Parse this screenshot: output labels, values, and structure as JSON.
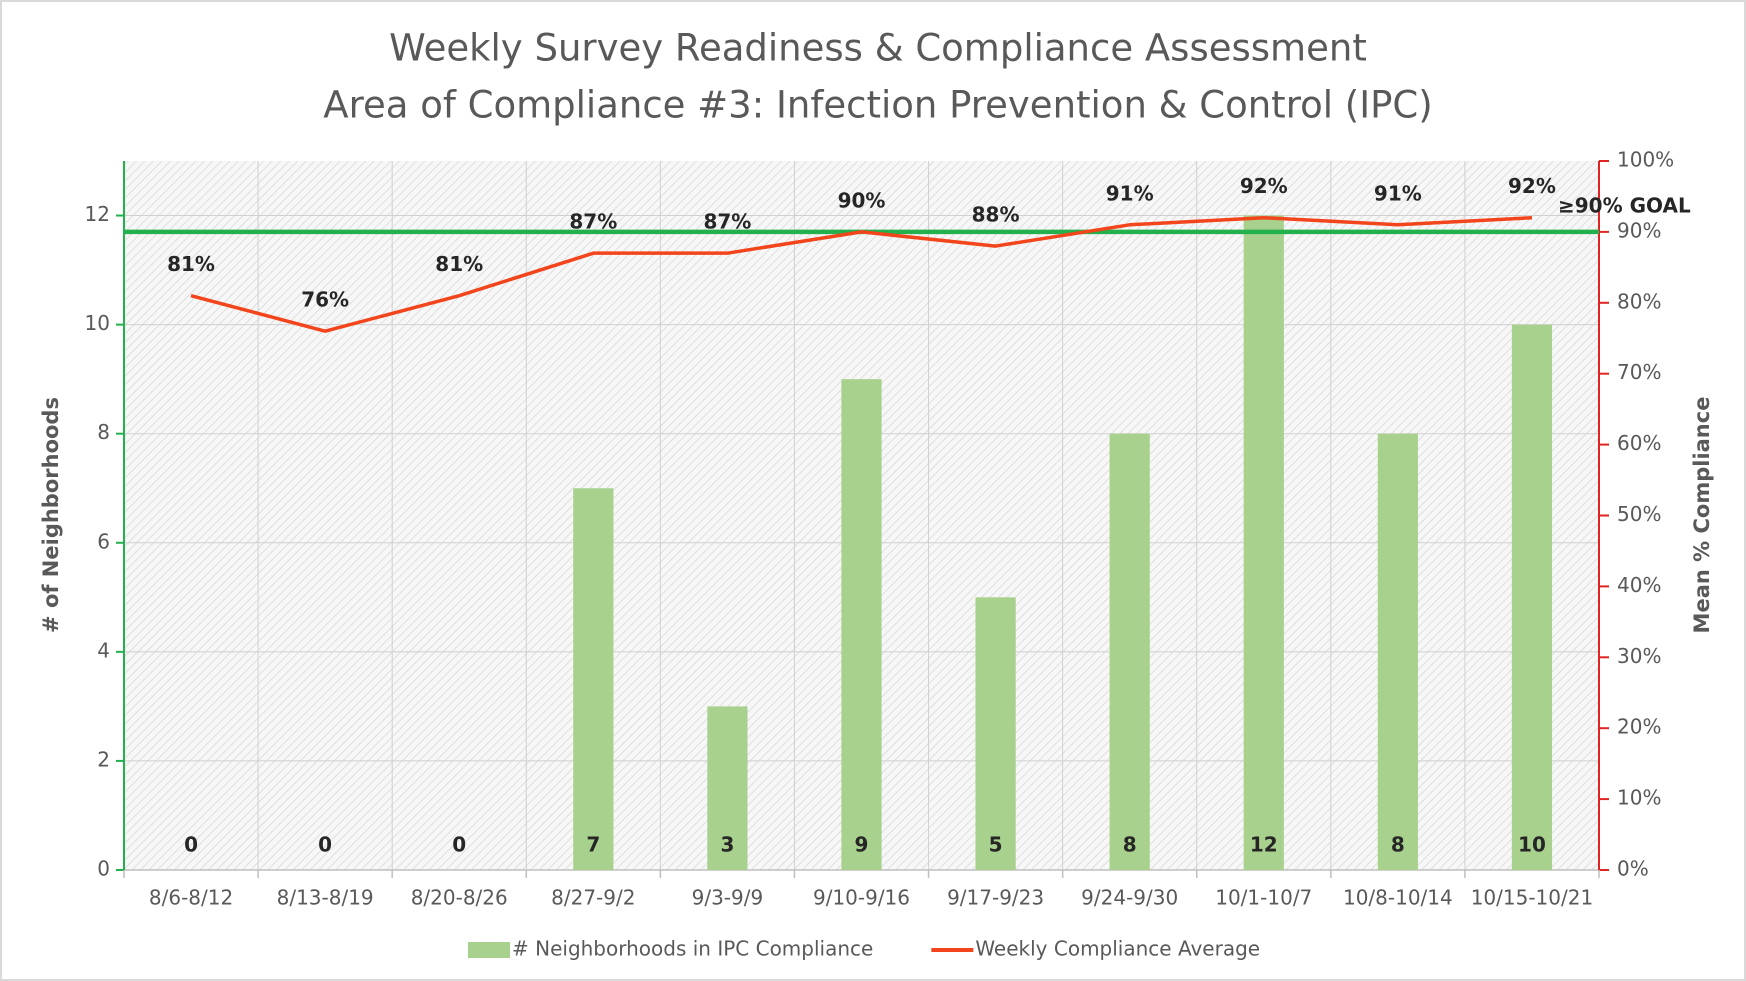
{
  "chart_data": {
    "type": "bar",
    "title": [
      "Weekly Survey Readiness & Compliance Assessment",
      "Area of Compliance #3: Infection Prevention & Control (IPC)"
    ],
    "y_label": "# of Neighborhoods",
    "y2_label": "Mean % Compliance",
    "categories": [
      "8/6-8/12",
      "8/13-8/19",
      "8/20-8/26",
      "8/27-9/2",
      "9/3-9/9",
      "9/10-9/16",
      "9/17-9/23",
      "9/24-9/30",
      "10/1-10/7",
      "10/8-10/14",
      "10/15-10/21"
    ],
    "series": [
      {
        "name": "# Neighborhoods in IPC Compliance",
        "type": "bar",
        "color": "#a9d18e",
        "values": [
          0,
          0,
          0,
          7,
          3,
          9,
          5,
          8,
          12,
          8,
          10
        ]
      },
      {
        "name": "Weekly Compliance Average",
        "type": "line",
        "axis": "y2",
        "color": "#f2451c",
        "values": [
          81,
          76,
          81,
          87,
          87,
          90,
          88,
          91,
          92,
          91,
          92
        ],
        "value_labels": [
          "81%",
          "76%",
          "81%",
          "87%",
          "87%",
          "90%",
          "88%",
          "91%",
          "92%",
          "91%",
          "92%"
        ]
      }
    ],
    "goal": {
      "value": 90,
      "label": "≥90% GOAL",
      "color": "#22b14c"
    },
    "ylim": [
      0,
      13
    ],
    "yticks": [
      0,
      2,
      4,
      6,
      8,
      10,
      12
    ],
    "y2lim": [
      0,
      100
    ],
    "y2ticks": [
      {
        "value": 0,
        "label": "0%"
      },
      {
        "value": 10,
        "label": "10%"
      },
      {
        "value": 20,
        "label": "20%"
      },
      {
        "value": 30,
        "label": "30%"
      },
      {
        "value": 40,
        "label": "40%"
      },
      {
        "value": 50,
        "label": "50%"
      },
      {
        "value": 60,
        "label": "60%"
      },
      {
        "value": 70,
        "label": "70%"
      },
      {
        "value": 80,
        "label": "80%"
      },
      {
        "value": 90,
        "label": "90%"
      },
      {
        "value": 100,
        "label": "100%"
      }
    ],
    "y_axis_color": "#22b14c",
    "y2_axis_color": "#e02424",
    "grid": true
  }
}
